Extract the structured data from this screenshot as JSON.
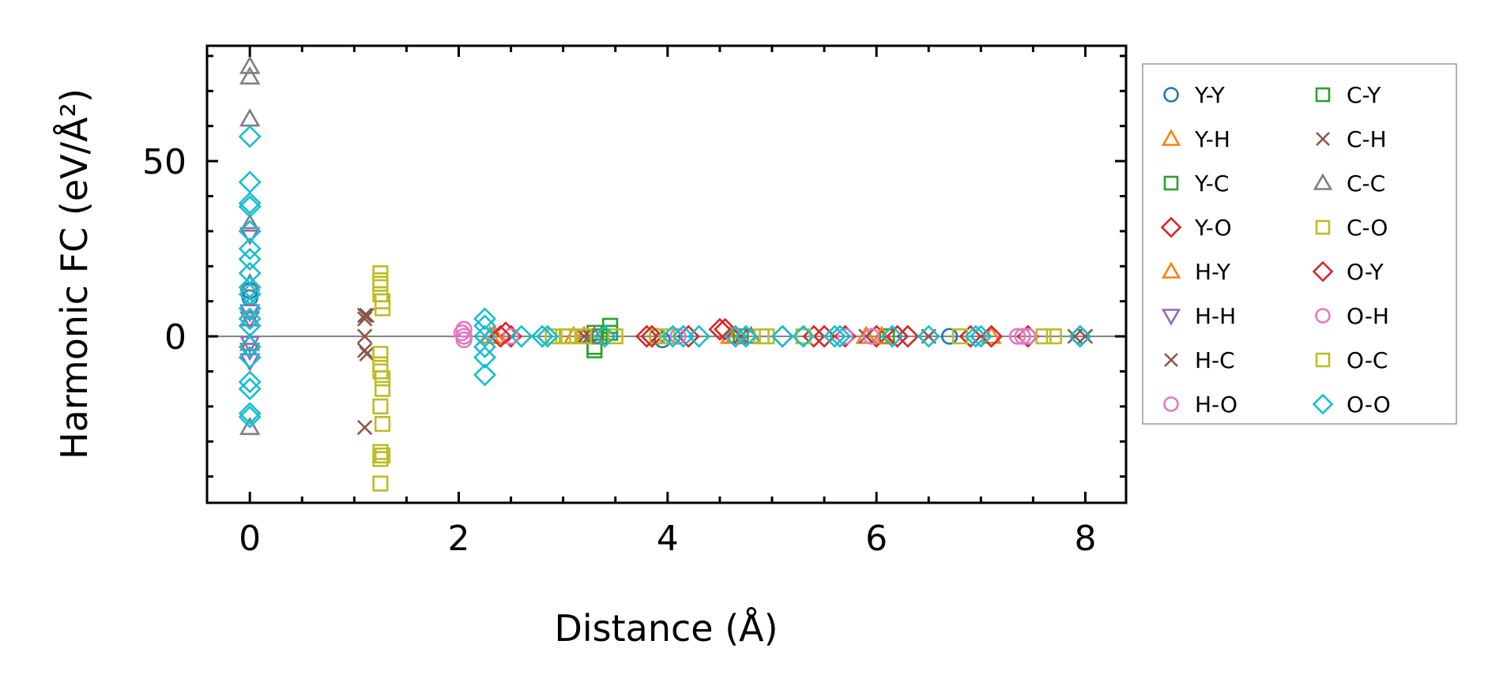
{
  "chart_data": {
    "type": "scatter",
    "title": "",
    "xlabel": "Distance (Å)",
    "ylabel": "Harmonic FC (eV/Å²)",
    "xlim": [
      -0.41,
      8.39
    ],
    "ylim": [
      -47.5,
      82.9
    ],
    "xticks": [
      0,
      2,
      4,
      6,
      8
    ],
    "xtick_labels": [
      "0",
      "2",
      "4",
      "6",
      "8"
    ],
    "yticks": [
      0,
      50
    ],
    "ytick_labels": [
      "0",
      "50"
    ],
    "x_minor_step": 0.5,
    "y_minor_step": 10,
    "zero_line": true,
    "grid": false,
    "legend_position": "outside-right",
    "series": [
      {
        "name": "Y-Y",
        "marker": "circle",
        "color": "#1f77b4",
        "x": [
          0,
          0,
          3.9,
          3.95,
          5.3,
          6.7
        ],
        "y": [
          13,
          11,
          0,
          -1,
          0,
          0
        ]
      },
      {
        "name": "Y-H",
        "marker": "triangle-up",
        "color": "#ff7f0e",
        "x": [
          2.3,
          3.1,
          4.6,
          5.9,
          7.1
        ],
        "y": [
          0,
          0,
          0,
          0,
          0
        ]
      },
      {
        "name": "Y-C",
        "marker": "square",
        "color": "#2ca02c",
        "x": [
          3.3,
          3.3,
          3.45,
          4.7,
          6.1
        ],
        "y": [
          1,
          -3,
          1,
          0,
          0
        ]
      },
      {
        "name": "Y-O",
        "marker": "diamond",
        "color": "#d62728",
        "x": [
          2.45,
          2.5,
          3.8,
          4.2,
          4.55,
          5.1,
          5.4,
          5.7,
          6.0,
          6.3,
          6.9,
          7.45,
          7.95
        ],
        "y": [
          1,
          0,
          0,
          0,
          2,
          0,
          0,
          0,
          0,
          0,
          0,
          0,
          0
        ]
      },
      {
        "name": "H-Y",
        "marker": "triangle-up",
        "color": "#ff7f0e",
        "x": [
          2.35,
          3.2,
          4.65,
          6.05
        ],
        "y": [
          0,
          0,
          0,
          0
        ]
      },
      {
        "name": "H-H",
        "marker": "triangle-down",
        "color": "#9467bd",
        "x": [
          0,
          0,
          0,
          0,
          0,
          0
        ],
        "y": [
          29,
          7,
          5,
          -4,
          -7,
          -2
        ]
      },
      {
        "name": "H-C",
        "marker": "x",
        "color": "#8c564b",
        "x": [
          1.1,
          1.1,
          1.1,
          1.1,
          1.1,
          3.2,
          4.7,
          5.9,
          7.9
        ],
        "y": [
          6,
          5,
          0,
          -4,
          -26,
          0,
          0,
          0,
          0
        ]
      },
      {
        "name": "H-O",
        "marker": "circle",
        "color": "#e377c2",
        "x": [
          2.03,
          2.05,
          2.05,
          2.5,
          4.1,
          5.7,
          7.35,
          7.4
        ],
        "y": [
          1,
          -1,
          0,
          0,
          0,
          0,
          0,
          0
        ]
      },
      {
        "name": "C-Y",
        "marker": "square",
        "color": "#2ca02c",
        "x": [
          3.3,
          3.35,
          3.45
        ],
        "y": [
          -4,
          0,
          3
        ]
      },
      {
        "name": "C-H",
        "marker": "x",
        "color": "#8c564b",
        "x": [
          1.12,
          1.12,
          3.25,
          6.5,
          8.0
        ],
        "y": [
          6,
          -5,
          0,
          0,
          0
        ]
      },
      {
        "name": "C-C",
        "marker": "triangle-up",
        "color": "#7f7f7f",
        "x": [
          0,
          0,
          0,
          0,
          0,
          0,
          0,
          0,
          3.3,
          4.8
        ],
        "y": [
          77,
          74,
          62,
          32,
          15,
          5,
          -2,
          -26,
          0,
          0
        ]
      },
      {
        "name": "C-O",
        "marker": "square",
        "color": "#bcbd22",
        "x": [
          1.25,
          1.25,
          1.25,
          1.27,
          1.27,
          1.25,
          1.25,
          1.25,
          1.27,
          1.27,
          1.25,
          1.27,
          1.25,
          1.25,
          3.0,
          3.2,
          3.9,
          4.9,
          6.8,
          7.6
        ],
        "y": [
          18,
          15,
          12,
          10,
          8,
          -5,
          -8,
          -10,
          -12,
          -15,
          -20,
          -25,
          -33,
          -35,
          0,
          0,
          0,
          0,
          0,
          0
        ]
      },
      {
        "name": "O-Y",
        "marker": "diamond",
        "color": "#d62728",
        "x": [
          2.4,
          3.85,
          4.5,
          5.5,
          6.2,
          7.1
        ],
        "y": [
          0,
          0,
          2,
          0,
          0,
          0
        ]
      },
      {
        "name": "O-H",
        "marker": "circle",
        "color": "#e377c2",
        "x": [
          2.05,
          5.95,
          7.45
        ],
        "y": [
          2,
          0,
          0
        ]
      },
      {
        "name": "O-C",
        "marker": "square",
        "color": "#bcbd22",
        "x": [
          1.25,
          1.27,
          1.25,
          2.9,
          3.05,
          3.5,
          4.0,
          4.95,
          5.3,
          7.7
        ],
        "y": [
          -42,
          -34,
          16,
          0,
          0,
          0,
          0,
          0,
          0,
          0
        ]
      },
      {
        "name": "O-O",
        "marker": "diamond",
        "color": "#17becf",
        "x": [
          0,
          0,
          0,
          0,
          0,
          0,
          0,
          0,
          0,
          0,
          0,
          0,
          0,
          0,
          0,
          0,
          0,
          0,
          0,
          2.25,
          2.25,
          2.25,
          2.25,
          2.25,
          2.25,
          2.6,
          2.8,
          2.85,
          3.4,
          4.05,
          4.15,
          4.3,
          4.65,
          4.75,
          5.1,
          5.3,
          5.6,
          5.65,
          6.15,
          6.5,
          6.95,
          7.0,
          7.95
        ],
        "y": [
          57,
          44,
          38,
          37,
          30,
          25,
          22,
          18,
          14,
          12,
          8,
          5,
          3,
          -3,
          -6,
          -13,
          -15,
          -22,
          -23,
          5,
          3,
          0,
          -3,
          -6,
          -11,
          0,
          0,
          0,
          0,
          0,
          0,
          0,
          0,
          0,
          0,
          0,
          0,
          0,
          0,
          0,
          0,
          0,
          0
        ]
      }
    ]
  }
}
